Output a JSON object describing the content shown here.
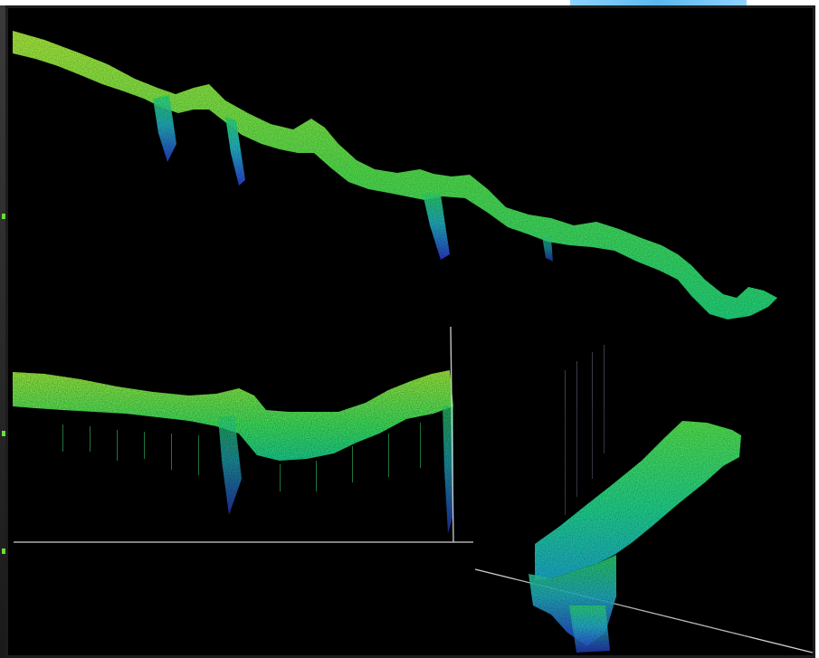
{
  "image": {
    "subject": "lidar-point-cloud-cross-sections",
    "background_color": "#000000",
    "colors": {
      "high": "#8fe23a",
      "mid": "#2ad96a",
      "low_cyan": "#22b8c8",
      "deep_blue": "#2a3fd6",
      "axis_line": "#cfcfcf",
      "frame": "#1d1d1d",
      "top_accent": "#5ab8f0",
      "side_tick": "#6bdc3c"
    }
  }
}
